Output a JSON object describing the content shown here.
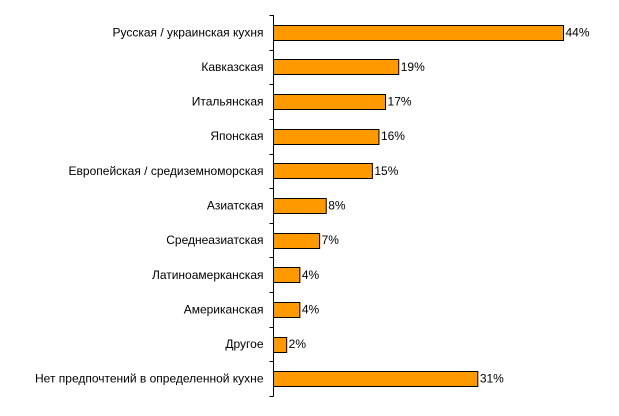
{
  "chart_data": {
    "type": "bar",
    "orientation": "horizontal",
    "title": "",
    "xlabel": "",
    "ylabel": "",
    "categories": [
      "Русская / украинская кухня",
      "Кавказская",
      "Итальянская",
      "Японская",
      "Европейская / средиземноморская",
      "Азиатская",
      "Среднеазиатская",
      "Латиноамерканская",
      "Американская",
      "Другое",
      "Нет предпочтений в определенной кухне"
    ],
    "values": [
      44,
      19,
      17,
      16,
      15,
      8,
      7,
      4,
      4,
      2,
      31
    ],
    "value_labels": [
      "44%",
      "19%",
      "17%",
      "16%",
      "15%",
      "8%",
      "7%",
      "4%",
      "4%",
      "2%",
      "31%"
    ],
    "unit": "%",
    "xlim": [
      0,
      44
    ],
    "grid": false,
    "legend": "none",
    "bar_color": "#FF9900"
  }
}
